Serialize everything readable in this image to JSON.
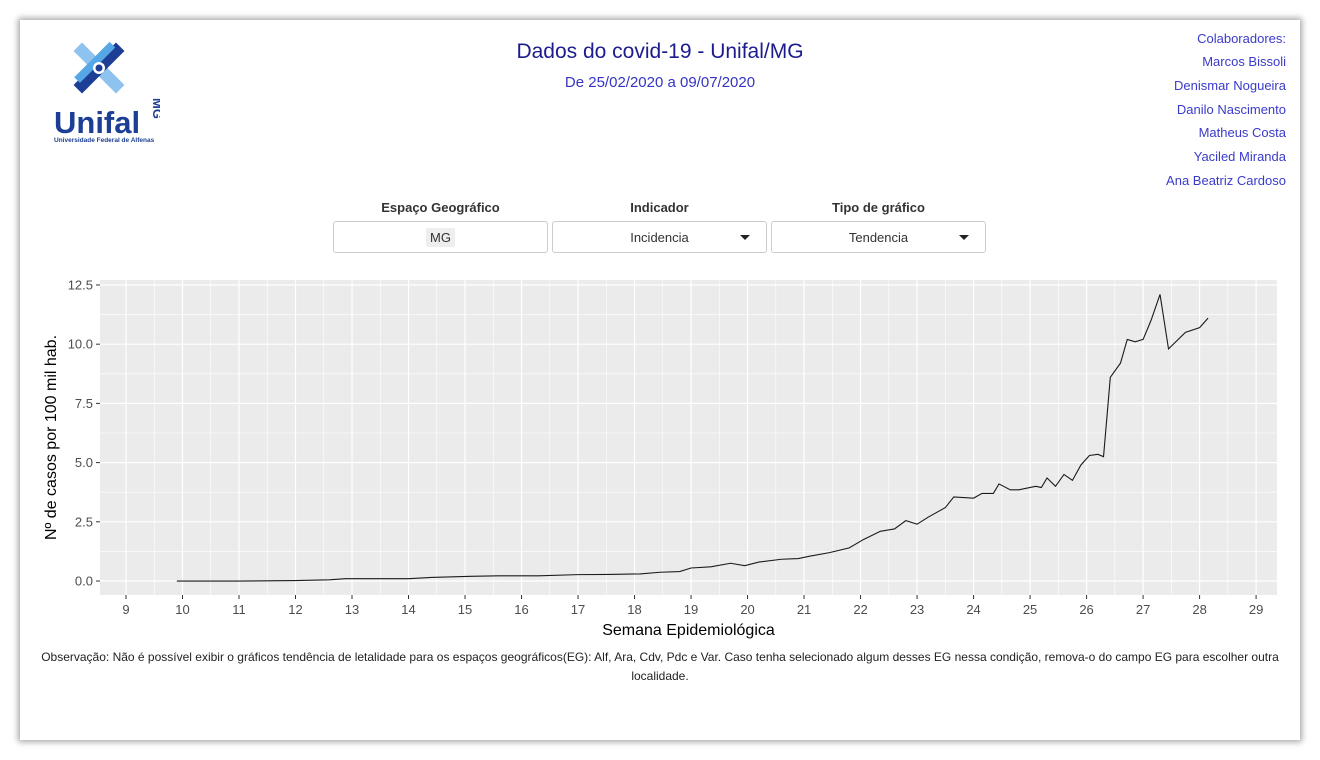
{
  "logo": {
    "name": "Unifal",
    "suffix": "MG",
    "caption": "Universidade Federal de Alfenas"
  },
  "header": {
    "title": "Dados do covid-19 - Unifal/MG",
    "subtitle": "De 25/02/2020 a 09/07/2020"
  },
  "collaborators": {
    "heading": "Colaboradores:",
    "names": [
      "Marcos Bissoli",
      "Denismar Nogueira",
      "Danilo Nascimento",
      "Matheus Costa",
      "Yaciled Miranda",
      "Ana Beatriz Cardoso"
    ]
  },
  "controls": [
    {
      "label": "Espaço Geográfico",
      "value": "MG"
    },
    {
      "label": "Indicador",
      "value": "Incidencia"
    },
    {
      "label": "Tipo de gráfico",
      "value": "Tendencia"
    }
  ],
  "chart_data": {
    "type": "line",
    "x_label": "Semana Epidemiológica",
    "y_label": "Nº de casos por 100 mil hab.",
    "x": [
      9.9,
      11.0,
      12.0,
      12.6,
      12.88,
      13.3,
      14.0,
      14.4,
      15.1,
      15.6,
      16.3,
      17.0,
      17.55,
      18.1,
      18.45,
      18.8,
      19.0,
      19.35,
      19.7,
      19.95,
      20.2,
      20.6,
      20.9,
      21.1,
      21.45,
      21.8,
      22.05,
      22.35,
      22.6,
      22.8,
      23.0,
      23.2,
      23.5,
      23.65,
      24.0,
      24.15,
      24.35,
      24.45,
      24.65,
      24.8,
      25.1,
      25.2,
      25.3,
      25.45,
      25.6,
      25.75,
      25.9,
      26.05,
      26.2,
      26.3,
      26.42,
      26.6,
      26.72,
      26.86,
      27.0,
      27.14,
      27.3,
      27.45,
      27.75,
      28.0,
      28.15
    ],
    "values": [
      0,
      0,
      0.02,
      0.05,
      0.1,
      0.1,
      0.1,
      0.15,
      0.2,
      0.22,
      0.22,
      0.27,
      0.28,
      0.3,
      0.37,
      0.4,
      0.55,
      0.6,
      0.75,
      0.65,
      0.8,
      0.92,
      0.95,
      1.05,
      1.2,
      1.4,
      1.75,
      2.1,
      2.2,
      2.55,
      2.4,
      2.7,
      3.1,
      3.55,
      3.5,
      3.7,
      3.7,
      4.1,
      3.85,
      3.85,
      4.0,
      3.95,
      4.35,
      4.0,
      4.5,
      4.25,
      4.9,
      5.3,
      5.35,
      5.25,
      8.6,
      9.2,
      10.2,
      10.1,
      10.2,
      11.0,
      12.1,
      9.8,
      10.5,
      10.7,
      11.1
    ],
    "color": "#1a1a1a",
    "xlim": [
      8.54,
      29.37
    ],
    "ylim": [
      -0.59,
      12.71
    ],
    "xticks": [
      9,
      10,
      11,
      12,
      13,
      14,
      15,
      16,
      17,
      18,
      19,
      20,
      21,
      22,
      23,
      24,
      25,
      26,
      27,
      28,
      29
    ],
    "yticks": [
      {
        "value": 0,
        "label": "0.0"
      },
      2.5,
      {
        "value": 5,
        "label": "5.0"
      },
      7.5,
      {
        "value": 10,
        "label": "10.0"
      },
      12.5
    ],
    "grid": true,
    "minor_grid": true
  },
  "note": "Observação: Não é possível exibir o gráficos tendência de letalidade para os espaços geográficos(EG): Alf, Ara, Cdv, Pdc e Var. Caso tenha selecionado algum desses EG nessa condição, remova-o do campo EG para escolher outra localidade."
}
